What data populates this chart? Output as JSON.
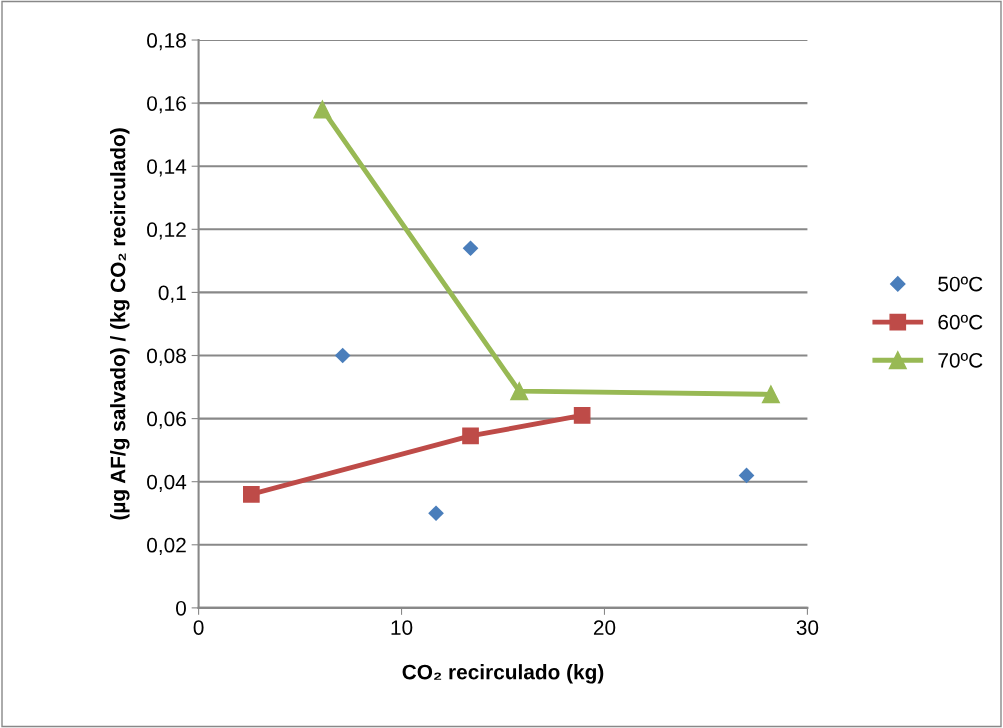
{
  "chart_data": {
    "type": "line",
    "xlabel": "CO₂ recirculado (kg)",
    "ylabel": "(µg AF/g salvado) / (kg CO₂ recirculado)",
    "xlim": [
      0,
      30
    ],
    "xticks": [
      0,
      10,
      20,
      30
    ],
    "ylim": [
      0,
      0.18
    ],
    "yticks": [
      {
        "value": 0,
        "label": "0"
      },
      {
        "value": 0.02,
        "label": "0,02"
      },
      {
        "value": 0.04,
        "label": "0,04"
      },
      {
        "value": 0.06,
        "label": "0,06"
      },
      {
        "value": 0.08,
        "label": "0,08"
      },
      {
        "value": 0.1,
        "label": "0,1"
      },
      {
        "value": 0.12,
        "label": "0,12"
      },
      {
        "value": 0.14,
        "label": "0,14"
      },
      {
        "value": 0.16,
        "label": "0,16"
      },
      {
        "value": 0.18,
        "label": "0,18"
      }
    ],
    "grid": "y",
    "legend": "right",
    "series": [
      {
        "name": "50ºC",
        "type": "scatter",
        "marker": "diamond",
        "color": "#4a7ebb",
        "x": [
          7.1,
          11.7,
          13.4,
          27.0
        ],
        "values": [
          0.08,
          0.03,
          0.114,
          0.042
        ]
      },
      {
        "name": "60ºC",
        "marker": "square",
        "color": "#be4b48",
        "x": [
          2.6,
          13.4,
          18.9
        ],
        "values": [
          0.036,
          0.0545,
          0.061
        ]
      },
      {
        "name": "70ºC",
        "marker": "triangle",
        "color": "#98b954",
        "x": [
          6.1,
          15.8,
          28.2
        ],
        "values": [
          0.158,
          0.0687,
          0.0677
        ]
      }
    ]
  }
}
